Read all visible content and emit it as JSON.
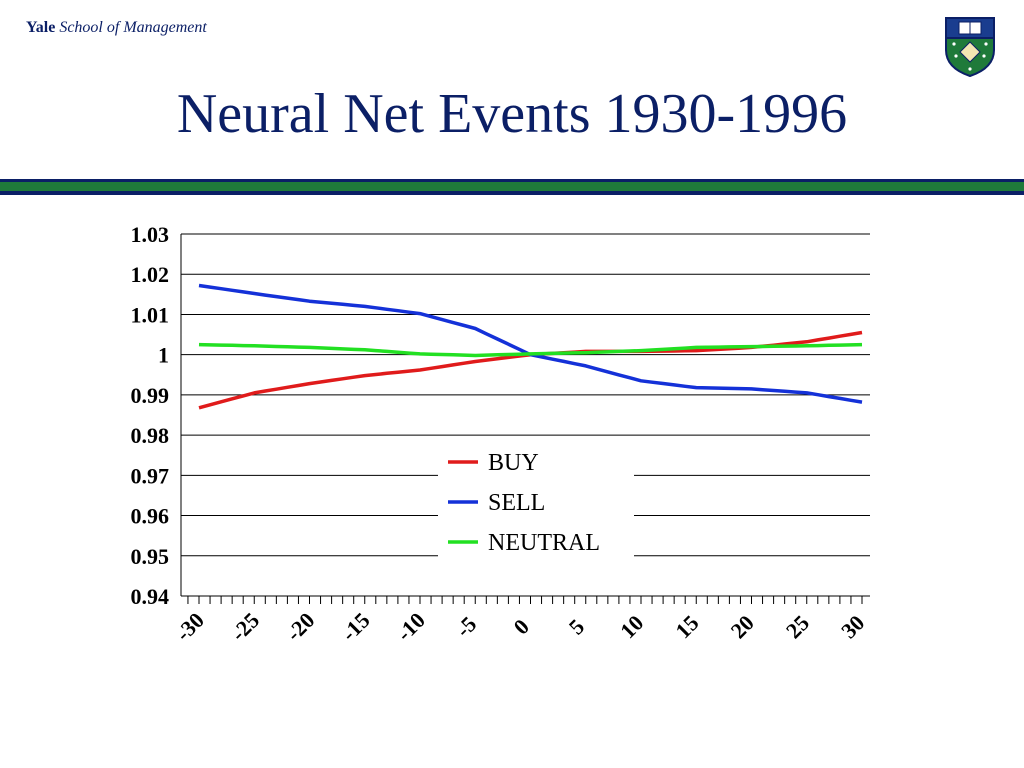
{
  "header": {
    "brand_yale": "Yale",
    "brand_school": "School of Management",
    "crest_icon": "yale-shield-crest-icon"
  },
  "colors": {
    "title": "#0b1f66",
    "rule_blue": "#0b1f66",
    "rule_green": "#1f7a3a",
    "buy": "#e01b1b",
    "sell": "#1431d8",
    "neutral": "#22e022",
    "gridline": "#000000"
  },
  "chart_data": {
    "type": "line",
    "title": "Neural Net Events 1930-1996",
    "xlabel": "",
    "ylabel": "",
    "ylim": [
      0.94,
      1.03
    ],
    "xlim": [
      -30,
      30
    ],
    "y_ticks": [
      "1.03",
      "1.02",
      "1.01",
      "1",
      "0.99",
      "0.98",
      "0.97",
      "0.96",
      "0.95",
      "0.94"
    ],
    "x_ticks": [
      "-30",
      "-25",
      "-20",
      "-15",
      "-10",
      "-5",
      "0",
      "5",
      "10",
      "15",
      "20",
      "25",
      "30"
    ],
    "grid": "horizontal",
    "legend_position": "center",
    "x": [
      -30,
      -25,
      -20,
      -15,
      -10,
      -5,
      0,
      5,
      10,
      15,
      20,
      25,
      30
    ],
    "series": [
      {
        "name": "BUY",
        "color": "#e01b1b",
        "values": [
          0.9868,
          0.9905,
          0.9928,
          0.9948,
          0.9962,
          0.9983,
          1.0,
          1.0008,
          1.0008,
          1.001,
          1.0018,
          1.0032,
          1.0055
        ]
      },
      {
        "name": "SELL",
        "color": "#1431d8",
        "values": [
          1.0172,
          1.0152,
          1.0133,
          1.012,
          1.0102,
          1.0065,
          1.0,
          0.9972,
          0.9935,
          0.9918,
          0.9915,
          0.9905,
          0.9882
        ]
      },
      {
        "name": "NEUTRAL",
        "color": "#22e022",
        "values": [
          1.0025,
          1.0022,
          1.0018,
          1.0012,
          1.0002,
          0.9998,
          1.0002,
          1.0005,
          1.001,
          1.0018,
          1.002,
          1.0022,
          1.0025
        ]
      }
    ]
  }
}
